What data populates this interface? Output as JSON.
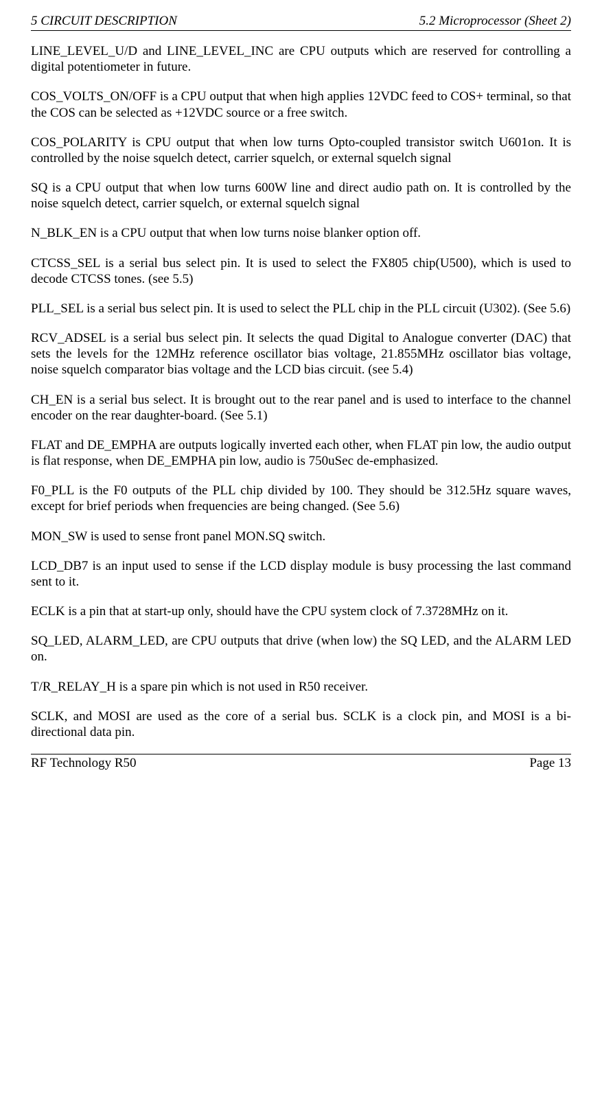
{
  "header": {
    "left": "5  CIRCUIT DESCRIPTION",
    "right": "5.2  Microprocessor (Sheet 2)"
  },
  "paragraphs": {
    "p1": "LINE_LEVEL_U/D and LINE_LEVEL_INC are CPU outputs which are reserved for controlling a digital potentiometer in future.",
    "p2": "COS_VOLTS_ON/OFF is a CPU output that when high applies 12VDC feed to COS+ terminal, so that the COS can be selected as +12VDC source or a free switch.",
    "p3": "COS_POLARITY is CPU output that when low turns Opto-coupled transistor switch U601on.  It is controlled by the noise squelch detect, carrier squelch, or external squelch signal",
    "p4": "SQ is a CPU output that when low turns 600W line and direct audio path on.  It is controlled by the noise squelch detect, carrier squelch, or external squelch signal",
    "p5": "N_BLK_EN is a CPU output that when low turns noise blanker option off.",
    "p6": "CTCSS_SEL is a serial bus select pin.  It is used to select the FX805 chip(U500), which is used to decode CTCSS tones. (see 5.5)",
    "p7": "PLL_SEL is a serial bus select pin.  It is used to select the PLL chip in the PLL circuit (U302). (See 5.6)",
    "p8": "RCV_ADSEL is a serial bus select pin.  It selects the quad Digital to Analogue converter (DAC) that sets the levels for the 12MHz reference oscillator bias voltage, 21.855MHz oscillator bias voltage, noise squelch comparator bias voltage and  the LCD bias circuit. (see 5.4)",
    "p9": "CH_EN is a serial bus select.  It is brought out to the rear panel and is used to interface to the channel encoder on the rear daughter-board. (See 5.1)",
    "p10": "FLAT and DE_EMPHA are outputs logically inverted each other, when FLAT pin low, the audio output is flat response, when DE_EMPHA pin low, audio is 750uSec de-emphasized.",
    "p11": "F0_PLL is the F0 outputs of  the PLL chip divided by 100.  They should be 312.5Hz square waves, except for brief periods when frequencies are being changed. (See 5.6)",
    "p12": "MON_SW is  used to sense front panel MON.SQ switch.",
    "p13": "LCD_DB7 is an input used to sense if the LCD display module is busy processing the last command sent to it.",
    "p14": "ECLK is a pin that at start-up only, should have the CPU system clock of 7.3728MHz on it.",
    "p15": "SQ_LED, ALARM_LED, are CPU outputs that drive (when low) the SQ LED, and the ALARM LED on.",
    "p16": "T/R_RELAY_H is a spare pin which is not used in R50 receiver.",
    "p17": "SCLK, and MOSI are used as the core of a serial bus.  SCLK is a clock pin, and MOSI is a bi-directional data pin."
  },
  "footer": {
    "left": "RF Technology   R50",
    "right": "Page 13"
  }
}
